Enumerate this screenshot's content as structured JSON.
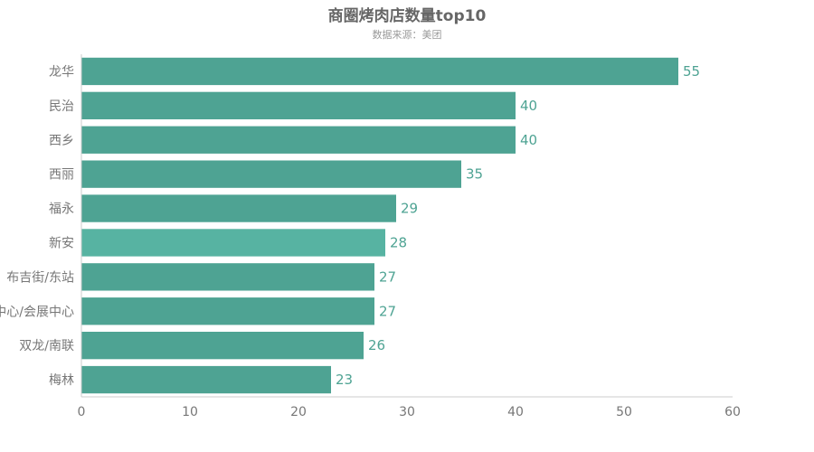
{
  "chart_data": {
    "type": "bar",
    "orientation": "horizontal",
    "title": "商圈烤肉店数量top10",
    "subtitle": "数据来源：美团",
    "categories": [
      "龙华",
      "民治",
      "西乡",
      "西丽",
      "福永",
      "新安",
      "布吉街/东站",
      "会展中心/会展中心",
      "双龙/南联",
      "梅林"
    ],
    "values": [
      55,
      40,
      40,
      35,
      29,
      28,
      27,
      27,
      26,
      23
    ],
    "xlim": [
      0,
      60
    ],
    "xticks": [
      0,
      10,
      20,
      30,
      40,
      50,
      60
    ],
    "grid": false,
    "colors": {
      "bar": "#4ea393",
      "bar_highlight": "#57b3a2",
      "value_label": "#4ea393",
      "axis": "#cccccc"
    },
    "highlighted_index": 5
  }
}
